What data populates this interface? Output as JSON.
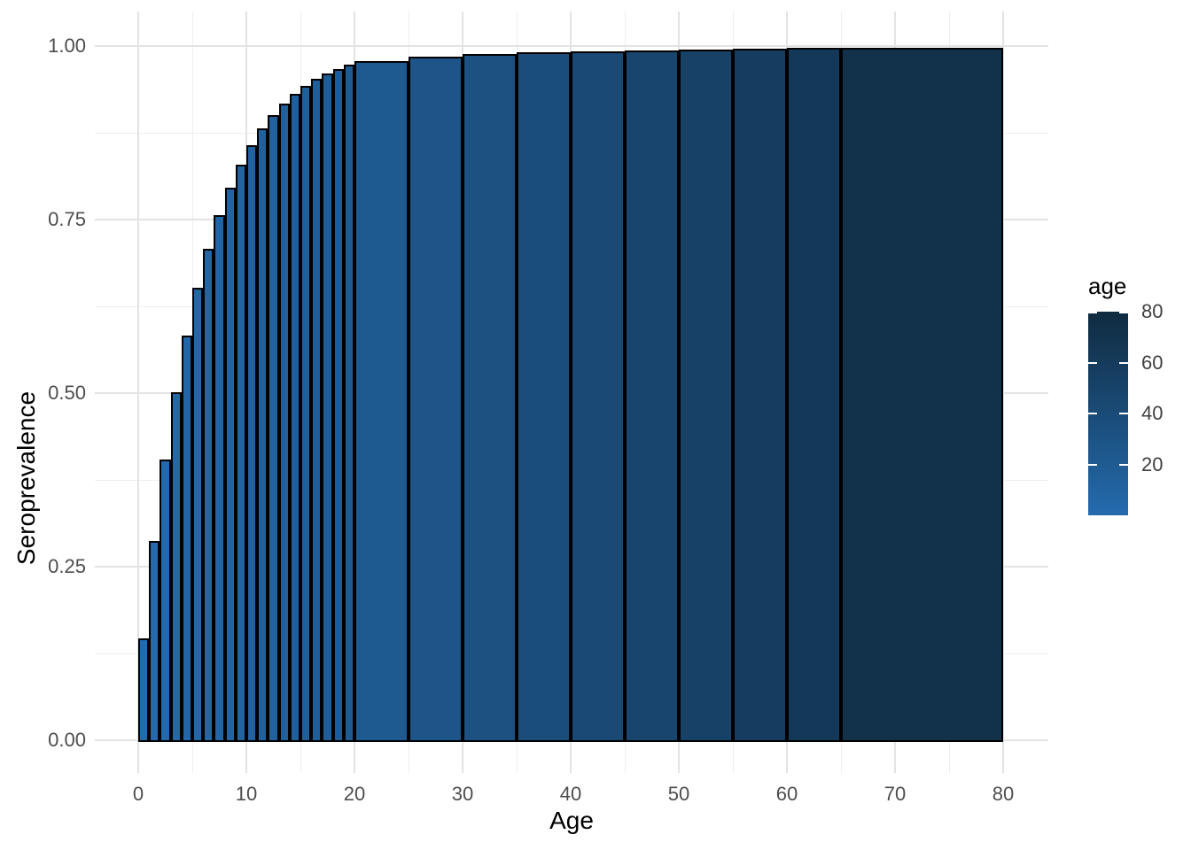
{
  "chart_data": {
    "type": "bar",
    "title": "",
    "xlabel": "Age",
    "ylabel": "Seroprevalence",
    "x_axis": {
      "major_ticks": [
        0,
        10,
        20,
        30,
        40,
        50,
        60,
        70,
        80
      ],
      "minor_ticks": [
        5,
        15,
        25,
        35,
        45,
        55,
        65,
        75
      ],
      "tick_labels": [
        "0",
        "10",
        "20",
        "30",
        "40",
        "50",
        "60",
        "70",
        "80"
      ],
      "range": [
        -4,
        84.2
      ]
    },
    "y_axis": {
      "major_ticks": [
        0,
        0.25,
        0.5,
        0.75,
        1.0
      ],
      "minor_ticks": [
        0.125,
        0.375,
        0.625,
        0.875
      ],
      "tick_labels": [
        "0.00",
        "0.25",
        "0.50",
        "0.75",
        "1.00"
      ],
      "range": [
        -0.047,
        1.05
      ]
    },
    "bars": [
      {
        "from": 0,
        "to": 1,
        "value": 0.147
      },
      {
        "from": 1,
        "to": 2,
        "value": 0.287
      },
      {
        "from": 2,
        "to": 3,
        "value": 0.404
      },
      {
        "from": 3,
        "to": 4,
        "value": 0.501
      },
      {
        "from": 4,
        "to": 5,
        "value": 0.583
      },
      {
        "from": 5,
        "to": 6,
        "value": 0.652
      },
      {
        "from": 6,
        "to": 7,
        "value": 0.708
      },
      {
        "from": 7,
        "to": 8,
        "value": 0.756
      },
      {
        "from": 8,
        "to": 9,
        "value": 0.796
      },
      {
        "from": 9,
        "to": 10,
        "value": 0.829
      },
      {
        "from": 10,
        "to": 11,
        "value": 0.857
      },
      {
        "from": 11,
        "to": 12,
        "value": 0.881
      },
      {
        "from": 12,
        "to": 13,
        "value": 0.901
      },
      {
        "from": 13,
        "to": 14,
        "value": 0.917
      },
      {
        "from": 14,
        "to": 15,
        "value": 0.931
      },
      {
        "from": 15,
        "to": 16,
        "value": 0.943
      },
      {
        "from": 16,
        "to": 17,
        "value": 0.953
      },
      {
        "from": 17,
        "to": 18,
        "value": 0.961
      },
      {
        "from": 18,
        "to": 19,
        "value": 0.967
      },
      {
        "from": 19,
        "to": 20,
        "value": 0.973
      },
      {
        "from": 20,
        "to": 25,
        "value": 0.978
      },
      {
        "from": 25,
        "to": 30,
        "value": 0.985
      },
      {
        "from": 30,
        "to": 35,
        "value": 0.989
      },
      {
        "from": 35,
        "to": 40,
        "value": 0.991
      },
      {
        "from": 40,
        "to": 45,
        "value": 0.992
      },
      {
        "from": 45,
        "to": 50,
        "value": 0.9935
      },
      {
        "from": 50,
        "to": 55,
        "value": 0.995
      },
      {
        "from": 55,
        "to": 60,
        "value": 0.996
      },
      {
        "from": 60,
        "to": 65,
        "value": 0.997
      },
      {
        "from": 65,
        "to": 80,
        "value": 0.998
      }
    ],
    "colormap": {
      "attribute": "age",
      "domain": [
        0,
        80
      ],
      "low_color": "#246BAE",
      "high_color": "#102B40",
      "fill_by": "bin_midpoint"
    },
    "legend": {
      "title": "age",
      "ticks": [
        20,
        40,
        60,
        80
      ],
      "tick_labels": [
        "20",
        "40",
        "60",
        "80"
      ],
      "position": "right"
    },
    "style": {
      "bar_stroke_color": "#000000",
      "grid_major_color": "#e3e3e3",
      "grid_minor_color": "#eeeeee",
      "tick_label_color": "#4d4d4d",
      "axis_title_color": "#000000",
      "background_color": "#ffffff",
      "grid": true
    }
  }
}
